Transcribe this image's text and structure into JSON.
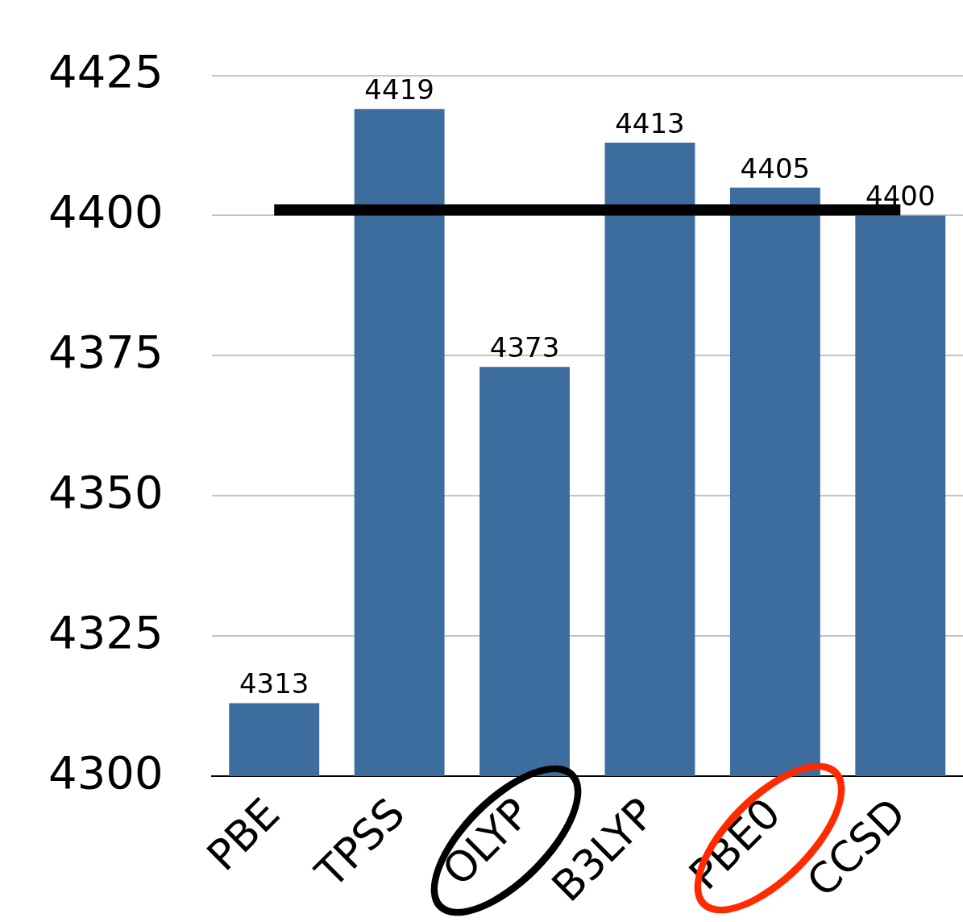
{
  "chart_data": {
    "type": "bar",
    "categories": [
      "PBE",
      "TPSS",
      "OLYP",
      "B3LYP",
      "PBE0",
      "CCSD"
    ],
    "values": [
      4313,
      4419,
      4373,
      4413,
      4405,
      4400
    ],
    "color": "#3d6d9e",
    "ylim": [
      4300,
      4425
    ],
    "yticks": [
      4300,
      4325,
      4350,
      4375,
      4400,
      4425
    ],
    "grid": "y",
    "legend": false,
    "data_labels": true,
    "ref_lines": [
      {
        "axis": "y",
        "value": 4401,
        "color": "#000000"
      }
    ]
  }
}
